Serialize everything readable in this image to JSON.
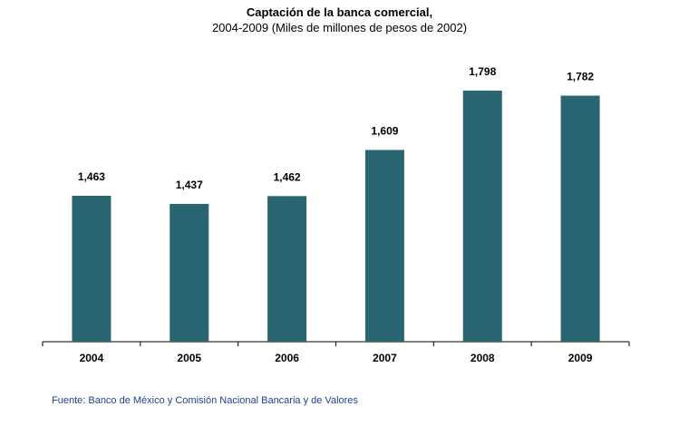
{
  "chart_data": {
    "type": "bar",
    "title": "Captación de la banca comercial,",
    "subtitle": "2004-2009 (Miles de millones de pesos de 2002)",
    "categories": [
      "2004",
      "2005",
      "2006",
      "2007",
      "2008",
      "2009"
    ],
    "values": [
      1463,
      1437,
      1462,
      1609,
      1798,
      1782
    ],
    "value_labels": [
      "1,463",
      "1,437",
      "1,462",
      "1,609",
      "1,798",
      "1,782"
    ],
    "bar_color": "#296672",
    "grid": false,
    "legend": "none"
  },
  "footer": {
    "source": "Fuente: Banco de México y Comisión Nacional Bancaria y de Valores"
  }
}
